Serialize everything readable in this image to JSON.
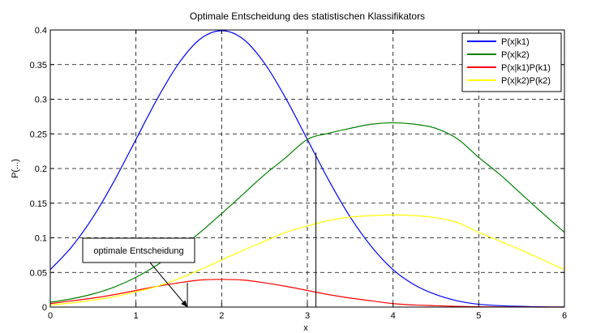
{
  "chart_data": {
    "type": "line",
    "title": "Optimale Entscheidung des statistischen Klassifikators",
    "xlabel": "x",
    "ylabel": "P(...)",
    "xlim": [
      0,
      6
    ],
    "ylim": [
      0,
      0.4
    ],
    "x_ticks": [
      "0",
      "1",
      "2",
      "3",
      "4",
      "5",
      "6"
    ],
    "y_ticks": [
      "0",
      "0.05",
      "0.1",
      "0.15",
      "0.2",
      "0.25",
      "0.3",
      "0.35",
      "0.4"
    ],
    "grid": true,
    "legend_position": "top-right",
    "x": [
      0,
      0.25,
      0.5,
      0.75,
      1,
      1.25,
      1.5,
      1.75,
      2,
      2.25,
      2.5,
      2.75,
      3,
      3.25,
      3.5,
      3.75,
      4,
      4.25,
      4.5,
      4.75,
      5,
      5.25,
      5.5,
      5.75,
      6
    ],
    "series": [
      {
        "name": "P(x|k1)",
        "color": "#0000ff",
        "values": [
          0.054,
          0.087,
          0.13,
          0.183,
          0.242,
          0.301,
          0.352,
          0.387,
          0.399,
          0.387,
          0.352,
          0.301,
          0.242,
          0.183,
          0.13,
          0.087,
          0.054,
          0.032,
          0.018,
          0.009,
          0.004,
          0.002,
          0.001,
          0.0003,
          0.0001
        ]
      },
      {
        "name": "P(x|k2)",
        "color": "#008000",
        "values": [
          0.007,
          0.012,
          0.019,
          0.029,
          0.043,
          0.061,
          0.083,
          0.108,
          0.135,
          0.163,
          0.191,
          0.216,
          0.242,
          0.251,
          0.258,
          0.264,
          0.266,
          0.264,
          0.258,
          0.243,
          0.216,
          0.191,
          0.163,
          0.135,
          0.108
        ]
      },
      {
        "name": "P(x|k1)P(k1)",
        "color": "#ff0000",
        "values": [
          0.005,
          0.009,
          0.013,
          0.018,
          0.024,
          0.03,
          0.035,
          0.039,
          0.04,
          0.039,
          0.035,
          0.03,
          0.024,
          0.018,
          0.013,
          0.009,
          0.005,
          0.003,
          0.002,
          0.001,
          0.0004,
          0.0002,
          0.0001,
          0,
          0
        ]
      },
      {
        "name": "P(x|k2)P(k2)",
        "color": "#ffff00",
        "values": [
          0.003,
          0.006,
          0.01,
          0.015,
          0.022,
          0.03,
          0.041,
          0.054,
          0.068,
          0.082,
          0.095,
          0.108,
          0.117,
          0.125,
          0.13,
          0.132,
          0.133,
          0.132,
          0.129,
          0.122,
          0.108,
          0.095,
          0.082,
          0.068,
          0.054
        ]
      }
    ],
    "decision_lines": [
      {
        "x": 3.1,
        "y_top": 0.223
      },
      {
        "x": 1.6,
        "y_top": 0.035
      }
    ],
    "annotation": {
      "text": "optimale Entscheidung",
      "arrow_to": {
        "x": 1.6,
        "y": 0
      }
    }
  }
}
